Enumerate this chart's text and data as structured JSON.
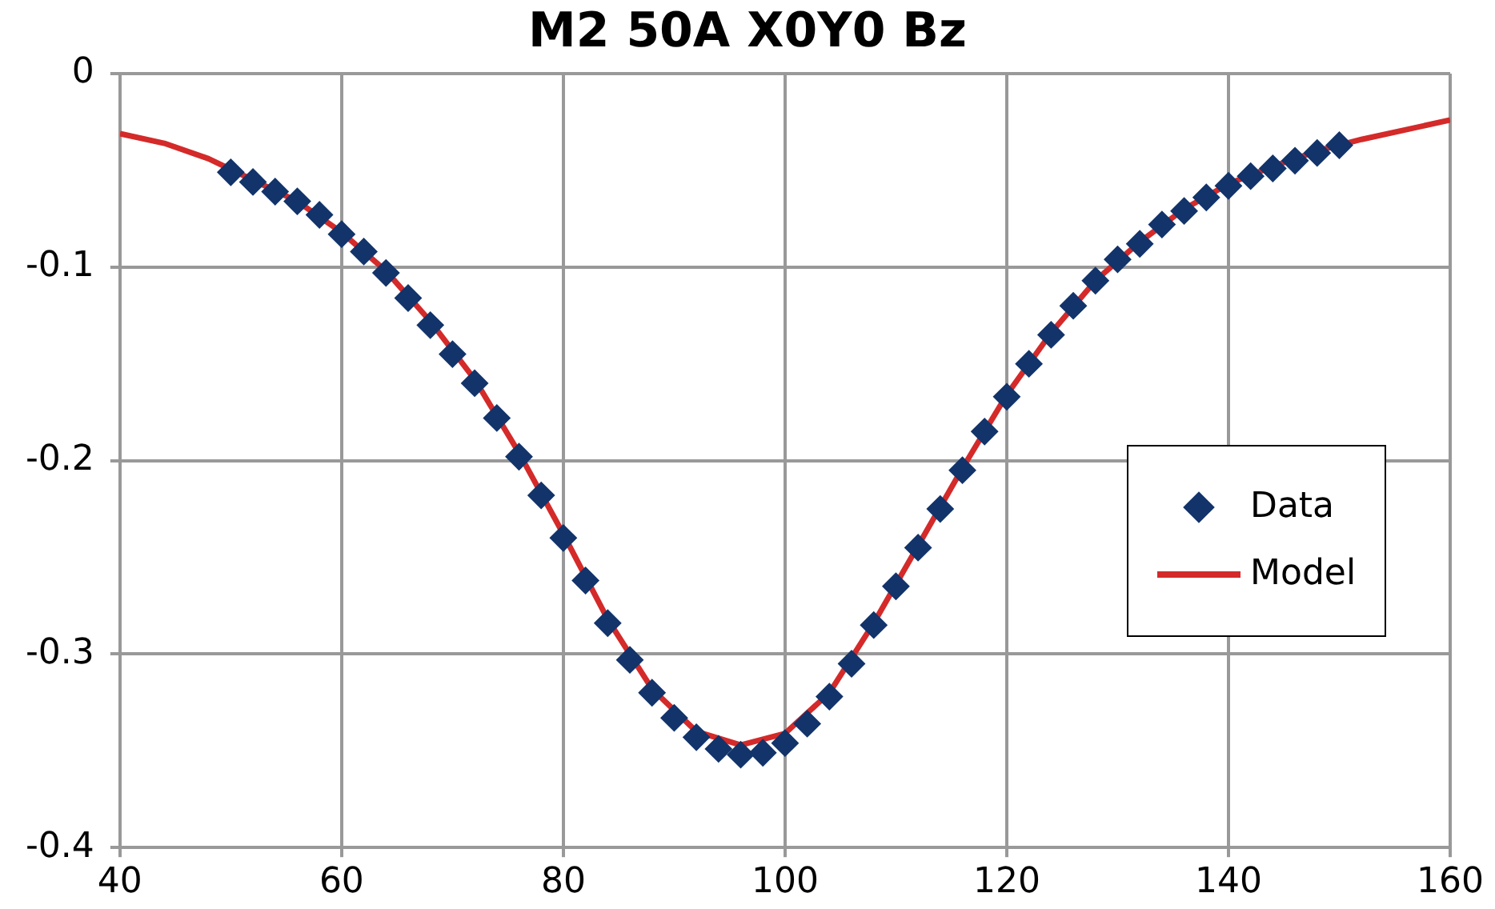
{
  "chart_data": {
    "type": "scatter",
    "title": "M2 50A X0Y0 Bz",
    "xlim": [
      40,
      160
    ],
    "xticks": [
      40,
      60,
      80,
      100,
      120,
      140,
      160
    ],
    "ylim": [
      -0.4,
      0
    ],
    "yticks": [
      -0.4,
      -0.3,
      -0.2,
      -0.1,
      0
    ],
    "grid": true,
    "legend": "right",
    "marker": "diamond",
    "series": [
      {
        "name": "Data",
        "color": "#12346b",
        "x": [
          50,
          52,
          54,
          56,
          58,
          60,
          62,
          64,
          66,
          68,
          70,
          72,
          74,
          76,
          78,
          80,
          82,
          84,
          86,
          88,
          90,
          92,
          94,
          96,
          98,
          100,
          102,
          104,
          106,
          108,
          110,
          112,
          114,
          116,
          118,
          120,
          122,
          124,
          126,
          128,
          130,
          132,
          134,
          136,
          138,
          140,
          142,
          144,
          146,
          148,
          150
        ],
        "values": [
          -0.051,
          -0.056,
          -0.061,
          -0.066,
          -0.073,
          -0.083,
          -0.092,
          -0.103,
          -0.116,
          -0.13,
          -0.145,
          -0.16,
          -0.178,
          -0.198,
          -0.218,
          -0.24,
          -0.262,
          -0.284,
          -0.303,
          -0.32,
          -0.333,
          -0.343,
          -0.349,
          -0.352,
          -0.351,
          -0.346,
          -0.336,
          -0.322,
          -0.305,
          -0.285,
          -0.265,
          -0.245,
          -0.225,
          -0.205,
          -0.185,
          -0.167,
          -0.15,
          -0.135,
          -0.12,
          -0.107,
          -0.096,
          -0.088,
          -0.078,
          -0.071,
          -0.064,
          -0.058,
          -0.053,
          -0.049,
          -0.045,
          -0.041,
          -0.037
        ]
      },
      {
        "name": "Model",
        "type": "line",
        "color": "#d42a2a",
        "line_style": "solid",
        "marker": "none",
        "x": [
          40,
          44,
          48,
          52,
          56,
          60,
          64,
          68,
          72,
          76,
          80,
          84,
          88,
          92,
          96,
          100,
          104,
          108,
          112,
          116,
          120,
          124,
          128,
          132,
          136,
          140,
          144,
          148,
          152,
          156,
          160
        ],
        "values": [
          -0.031,
          -0.036,
          -0.044,
          -0.055,
          -0.066,
          -0.082,
          -0.102,
          -0.128,
          -0.158,
          -0.196,
          -0.238,
          -0.282,
          -0.318,
          -0.34,
          -0.347,
          -0.341,
          -0.32,
          -0.284,
          -0.244,
          -0.204,
          -0.166,
          -0.134,
          -0.107,
          -0.087,
          -0.07,
          -0.057,
          -0.048,
          -0.04,
          -0.034,
          -0.029,
          -0.024
        ]
      }
    ]
  }
}
